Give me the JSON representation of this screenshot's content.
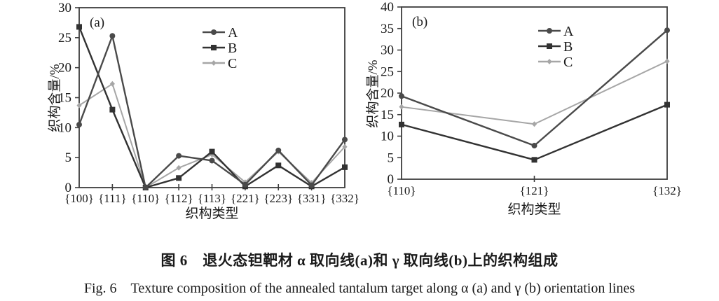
{
  "figure": {
    "caption_zh": "图 6　退火态钽靶材 α 取向线(a)和 γ 取向线(b)上的织构组成",
    "caption_en": "Fig. 6　Texture composition of the annealed tantalum target along α (a) and γ (b) orientation lines"
  },
  "colors": {
    "axis": "#3d3d3d",
    "text": "#1a1a1a",
    "series_a": "#4a4a4a",
    "series_b": "#323232",
    "series_c": "#a6a6a6"
  },
  "chart_data": [
    {
      "type": "line",
      "panel_label": "(a)",
      "title": "",
      "xlabel": "织构类型",
      "ylabel": "织构含量/%",
      "categories": [
        "{100}",
        "{111}",
        "{110}",
        "{112}",
        "{113}",
        "{221}",
        "{223}",
        "{331}",
        "{332}"
      ],
      "series": [
        {
          "name": "A",
          "marker": "circle",
          "color": "#4a4a4a",
          "values": [
            10.5,
            25.3,
            0,
            5.3,
            4.5,
            0.5,
            6.2,
            0.4,
            8.0
          ]
        },
        {
          "name": "B",
          "marker": "square",
          "color": "#323232",
          "values": [
            26.8,
            13.0,
            0,
            1.6,
            6.0,
            0.2,
            3.7,
            0.2,
            3.4
          ]
        },
        {
          "name": "C",
          "marker": "diamond",
          "color": "#a6a6a6",
          "values": [
            13.7,
            17.3,
            0,
            3.3,
            5.5,
            0.9,
            6.0,
            0.8,
            6.8
          ]
        }
      ],
      "ylim": [
        0,
        30
      ],
      "yticks": [
        0,
        5,
        10,
        15,
        20,
        25,
        30
      ],
      "grid": false,
      "box": true,
      "legend_position": "upper-center-inside"
    },
    {
      "type": "line",
      "panel_label": "(b)",
      "title": "",
      "xlabel": "织构类型",
      "ylabel": "织构含量/%",
      "categories": [
        "{110}",
        "{121}",
        "{132}"
      ],
      "series": [
        {
          "name": "A",
          "marker": "circle",
          "color": "#4a4a4a",
          "values": [
            19.3,
            7.8,
            34.6
          ]
        },
        {
          "name": "B",
          "marker": "square",
          "color": "#323232",
          "values": [
            12.7,
            4.5,
            17.3
          ]
        },
        {
          "name": "C",
          "marker": "diamond",
          "color": "#a6a6a6",
          "values": [
            16.8,
            12.8,
            27.4
          ]
        }
      ],
      "ylim": [
        0,
        40
      ],
      "yticks": [
        0,
        5,
        10,
        15,
        20,
        25,
        30,
        35,
        40
      ],
      "grid": false,
      "box": true,
      "legend_position": "upper-center-inside"
    }
  ]
}
